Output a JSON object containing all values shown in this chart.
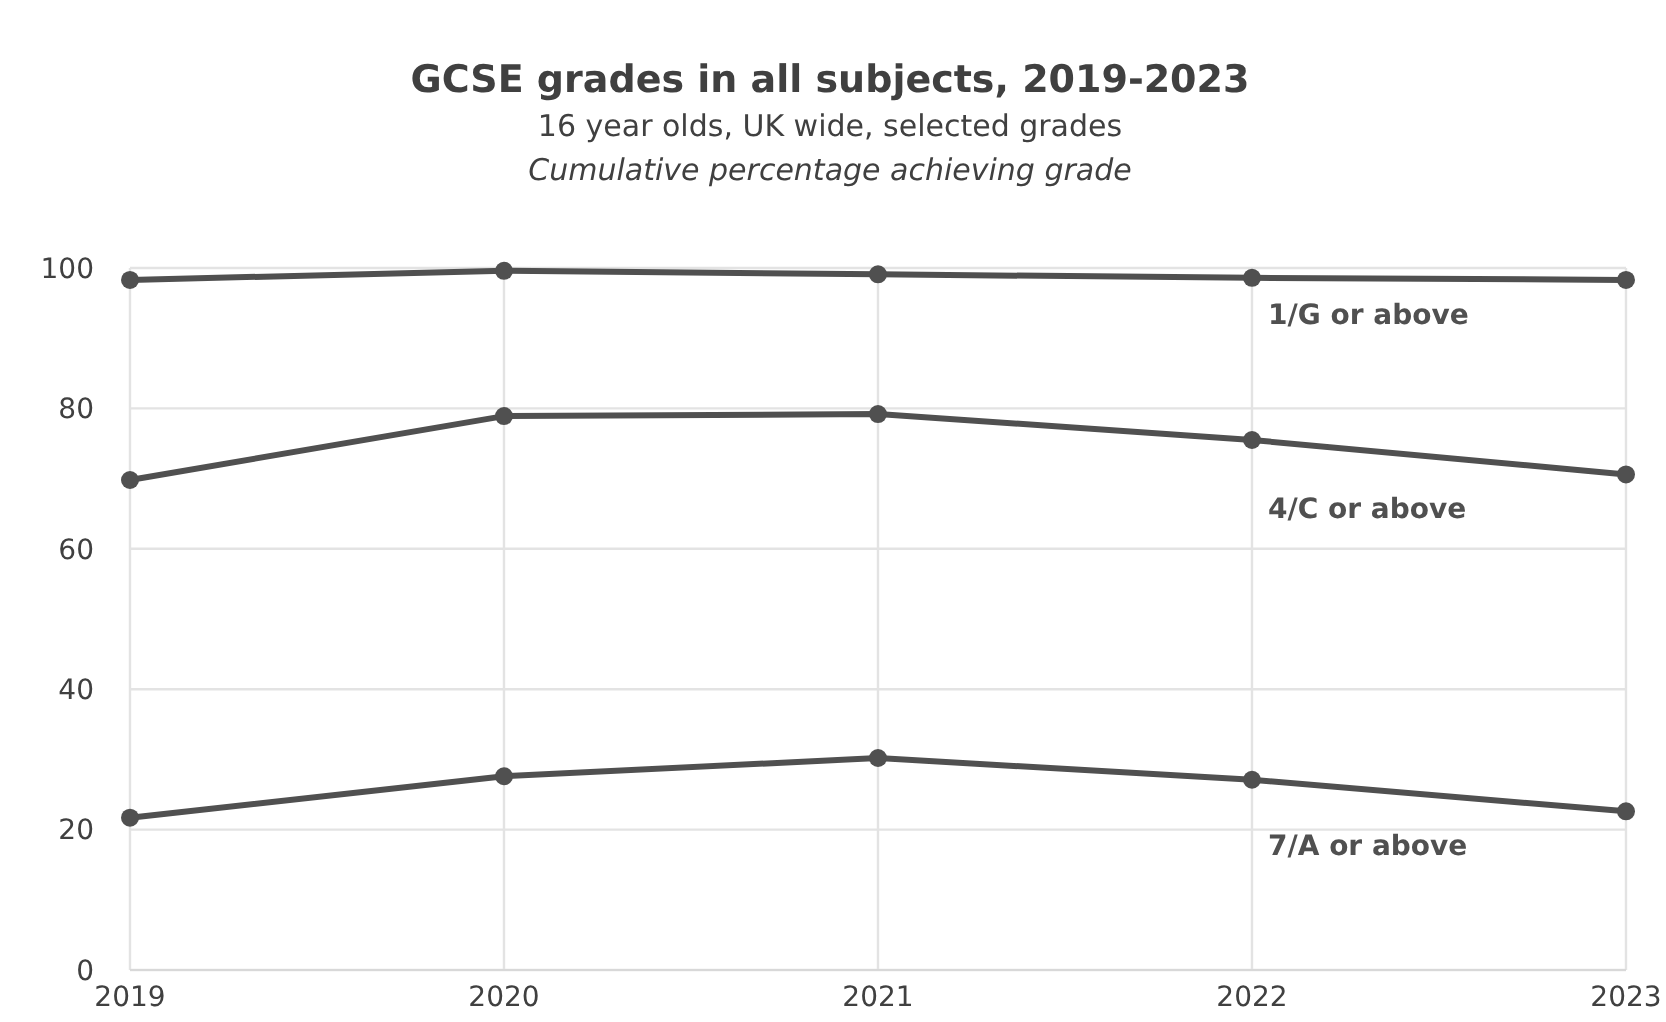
{
  "chart_data": {
    "type": "line",
    "title": "GCSE grades in all subjects, 2019-2023",
    "subtitle": "16 year olds, UK wide, selected grades",
    "annotations": [
      "Cumulative percentage achieving grade"
    ],
    "x": [
      2019,
      2020,
      2021,
      2022,
      2023
    ],
    "xlim": [
      2019,
      2023
    ],
    "xticks": [
      2019,
      2020,
      2021,
      2022,
      2023
    ],
    "ylim": [
      0,
      100
    ],
    "yticks": [
      0,
      20,
      40,
      60,
      80,
      100
    ],
    "grid": true,
    "marker": "circle",
    "line_style": "solid",
    "series": [
      {
        "name": "1/G or above",
        "color": "#505050",
        "values": [
          98.3,
          99.6,
          99.1,
          98.6,
          98.3
        ]
      },
      {
        "name": "4/C or above",
        "color": "#505050",
        "values": [
          69.8,
          78.9,
          79.2,
          75.5,
          70.6
        ]
      },
      {
        "name": "7/A or above",
        "color": "#505050",
        "values": [
          21.7,
          27.6,
          30.2,
          27.1,
          22.6
        ]
      }
    ]
  }
}
